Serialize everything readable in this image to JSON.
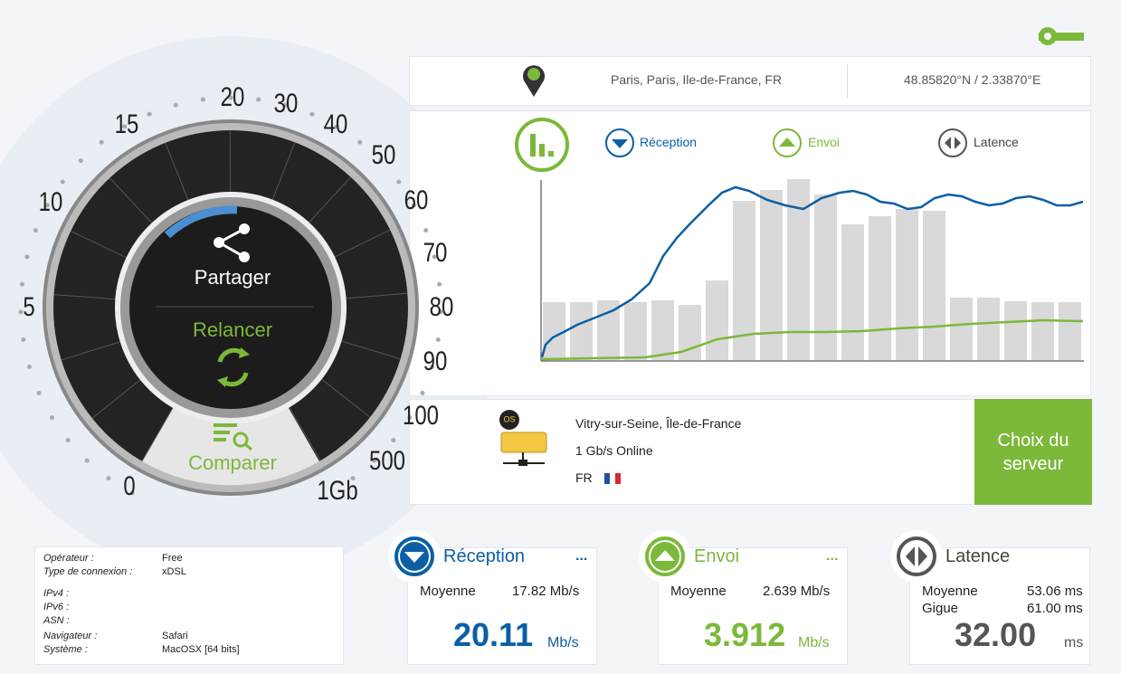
{
  "location": {
    "place": "Paris, Paris, Ile-de-France, FR",
    "coords": "48.85820°N / 2.33870°E"
  },
  "gauge": {
    "scale": [
      "0",
      "5",
      "10",
      "15",
      "20",
      "30",
      "40",
      "50",
      "60",
      "70",
      "80",
      "90",
      "100",
      "500",
      "1Gb"
    ],
    "share": "Partager",
    "restart": "Relancer",
    "compare": "Comparer"
  },
  "legend": [
    "Réception",
    "Envoi",
    "Latence"
  ],
  "server": {
    "city": "Vitry-sur-Seine, Île-de-France",
    "offer": "1 Gb/s Online",
    "country": "FR",
    "button": "Choix du serveur"
  },
  "info": [
    {
      "label": "Opérateur :",
      "value": "Free"
    },
    {
      "label": "Type de connexion :",
      "value": "xDSL"
    },
    {
      "label": "IPv4 :"
    },
    {
      "label": "IPv6 :"
    },
    {
      "label": "ASN :"
    },
    {
      "label": "Navigateur :",
      "value": "Safari"
    },
    {
      "label": "Système :",
      "value": "MacOSX [64 bits]"
    }
  ],
  "cards": [
    {
      "title": "Réception",
      "more": "...",
      "stats": [
        {
          "label": "Moyenne",
          "value": "17.82 Mb/s"
        }
      ],
      "value": "20.11",
      "unit": "Mb/s"
    },
    {
      "title": "Envoi",
      "more": "...",
      "stats": [
        {
          "label": "Moyenne",
          "value": "2.639 Mb/s"
        }
      ],
      "value": "3.912",
      "unit": "Mb/s"
    },
    {
      "title": "Latence",
      "stats": [
        {
          "label": "Moyenne",
          "value": "53.06 ms"
        },
        {
          "label": "Gigue",
          "value": "61.00 ms"
        }
      ],
      "value": "32.00",
      "unit": "ms"
    }
  ]
}
